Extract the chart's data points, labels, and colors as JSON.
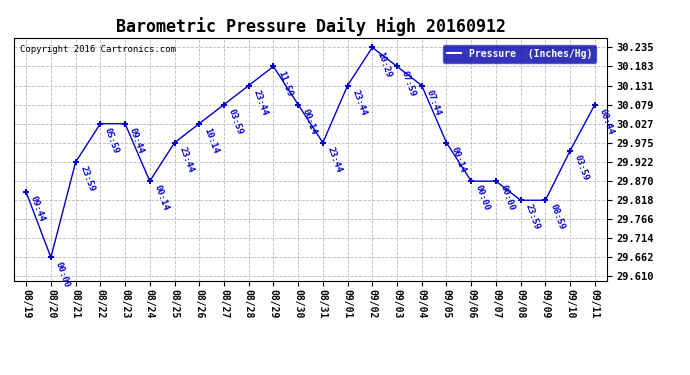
{
  "title": "Barometric Pressure Daily High 20160912",
  "copyright": "Copyright 2016 Cartronics.com",
  "legend_label": "Pressure  (Inches/Hg)",
  "dates": [
    "08/19",
    "08/20",
    "08/21",
    "08/22",
    "08/23",
    "08/24",
    "08/25",
    "08/26",
    "08/27",
    "08/28",
    "08/29",
    "08/30",
    "08/31",
    "09/01",
    "09/02",
    "09/03",
    "09/04",
    "09/05",
    "09/06",
    "09/07",
    "09/08",
    "09/09",
    "09/10",
    "09/11"
  ],
  "values": [
    29.84,
    29.662,
    29.922,
    30.027,
    30.027,
    29.87,
    29.975,
    30.027,
    30.079,
    30.131,
    30.183,
    30.079,
    29.975,
    30.131,
    30.235,
    30.183,
    30.131,
    29.975,
    29.87,
    29.87,
    29.818,
    29.818,
    29.953,
    30.079
  ],
  "time_labels": [
    "09:44",
    "00:00",
    "23:59",
    "05:59",
    "09:44",
    "00:14",
    "23:44",
    "10:14",
    "03:59",
    "23:44",
    "11:59",
    "00:14",
    "23:44",
    "23:44",
    "10:29",
    "07:59",
    "07:44",
    "00:14",
    "00:00",
    "00:00",
    "23:59",
    "08:59",
    "03:59",
    "08:44"
  ],
  "ylim_min": 29.597,
  "ylim_max": 30.262,
  "yticks": [
    29.61,
    29.662,
    29.714,
    29.766,
    29.818,
    29.87,
    29.922,
    29.975,
    30.027,
    30.079,
    30.131,
    30.183,
    30.235
  ],
  "line_color": "#0000cc",
  "marker_color": "#0000cc",
  "bg_color": "#ffffff",
  "grid_color": "#bbbbbb",
  "title_fontsize": 12,
  "label_fontsize": 6.5,
  "legend_bg": "#0000aa",
  "legend_fg": "#ffffff"
}
